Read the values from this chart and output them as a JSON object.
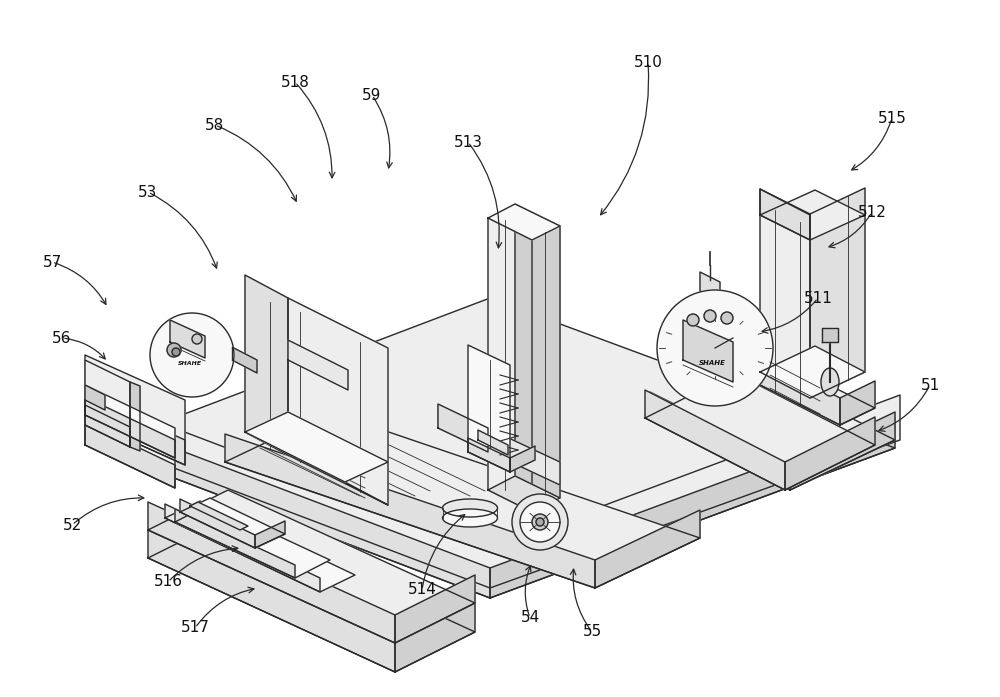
{
  "bg_color": "#ffffff",
  "line_color": "#2a2a2a",
  "lw": 1.0,
  "tlw": 0.6,
  "label_fontsize": 11,
  "labels": [
    [
      "51",
      930,
      385
    ],
    [
      "52",
      72,
      525
    ],
    [
      "53",
      148,
      192
    ],
    [
      "54",
      530,
      618
    ],
    [
      "55",
      592,
      632
    ],
    [
      "56",
      62,
      338
    ],
    [
      "57",
      52,
      262
    ],
    [
      "58",
      215,
      125
    ],
    [
      "59",
      372,
      95
    ],
    [
      "510",
      648,
      62
    ],
    [
      "511",
      818,
      298
    ],
    [
      "512",
      872,
      212
    ],
    [
      "513",
      468,
      142
    ],
    [
      "514",
      422,
      590
    ],
    [
      "515",
      892,
      118
    ],
    [
      "516",
      168,
      582
    ],
    [
      "517",
      195,
      628
    ],
    [
      "518",
      295,
      82
    ]
  ],
  "leaders": [
    [
      "51",
      930,
      385,
      875,
      432
    ],
    [
      "52",
      72,
      525,
      148,
      498
    ],
    [
      "53",
      148,
      192,
      218,
      272
    ],
    [
      "54",
      530,
      618,
      532,
      562
    ],
    [
      "55",
      592,
      632,
      574,
      565
    ],
    [
      "56",
      62,
      338,
      108,
      362
    ],
    [
      "57",
      52,
      262,
      108,
      308
    ],
    [
      "58",
      215,
      125,
      298,
      205
    ],
    [
      "59",
      372,
      95,
      388,
      172
    ],
    [
      "510",
      648,
      62,
      598,
      218
    ],
    [
      "511",
      818,
      298,
      758,
      332
    ],
    [
      "512",
      872,
      212,
      825,
      248
    ],
    [
      "513",
      468,
      142,
      498,
      252
    ],
    [
      "514",
      422,
      590,
      468,
      512
    ],
    [
      "515",
      892,
      118,
      848,
      172
    ],
    [
      "516",
      168,
      582,
      242,
      548
    ],
    [
      "517",
      195,
      628,
      258,
      588
    ],
    [
      "518",
      295,
      82,
      332,
      182
    ]
  ]
}
